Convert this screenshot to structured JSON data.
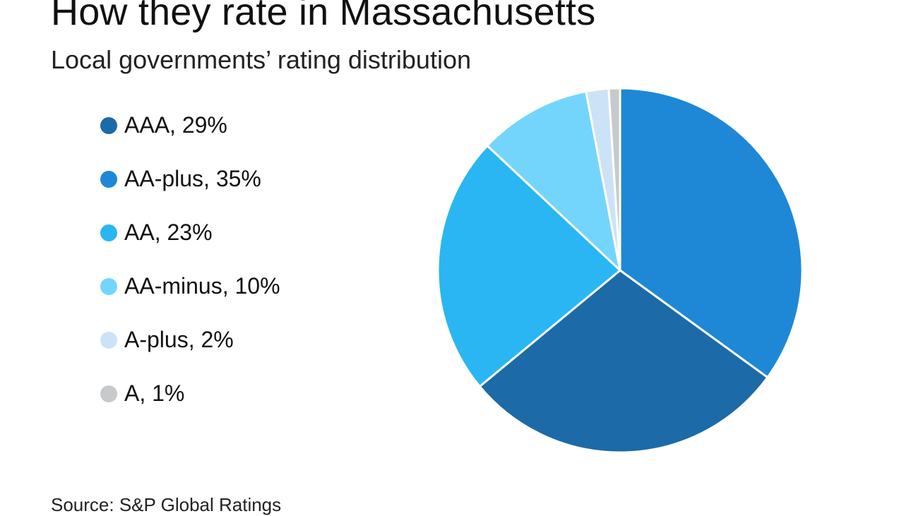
{
  "chart_data": {
    "type": "pie",
    "title": "How they rate in Massachusetts",
    "subtitle": "Local governments’ rating distribution",
    "source": "Source: S&P Global Ratings",
    "slices": [
      {
        "label": "AAA",
        "value": 29,
        "legend": "AAA, 29%",
        "color": "#1c6aa8"
      },
      {
        "label": "AA-plus",
        "value": 35,
        "legend": "AA-plus, 35%",
        "color": "#1e88d6"
      },
      {
        "label": "AA",
        "value": 23,
        "legend": "AA, 23%",
        "color": "#29b6f2"
      },
      {
        "label": "AA-minus",
        "value": 10,
        "legend": "AA-minus, 10%",
        "color": "#74d5fc"
      },
      {
        "label": "A-plus",
        "value": 2,
        "legend": "A-plus, 2%",
        "color": "#cce2f6"
      },
      {
        "label": "A",
        "value": 1,
        "legend": "A, 1%",
        "color": "#c8c9cb"
      }
    ],
    "drawing_order": [
      "AA-plus",
      "AAA",
      "AA",
      "AA-minus",
      "A-plus",
      "A"
    ],
    "start_angle_deg": 0,
    "direction": "clockwise",
    "slice_border_color": "#ffffff"
  }
}
